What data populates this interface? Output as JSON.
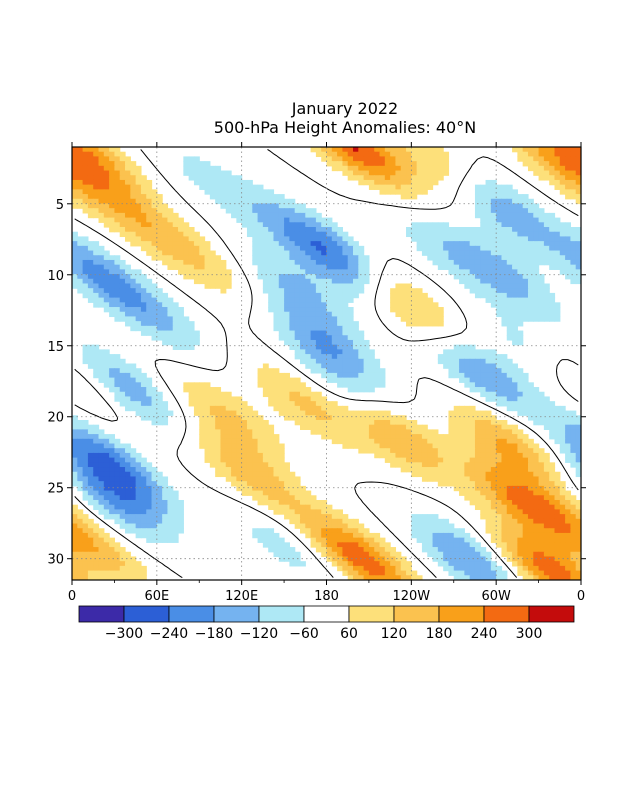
{
  "chart_data": {
    "type": "heatmap",
    "title": "January 2022",
    "subtitle": "500-hPa Height Anomalies: 40°N",
    "xlabel": "",
    "ylabel": "",
    "x_ticks": [
      "0",
      "60E",
      "120E",
      "180",
      "120W",
      "60W",
      "0"
    ],
    "y_ticks": [
      "5",
      "10",
      "15",
      "20",
      "25",
      "30"
    ],
    "x_range_deg_east": [
      0,
      360
    ],
    "y_range_day": [
      1,
      31
    ],
    "colorbar": {
      "labels": [
        "-300",
        "-240",
        "-180",
        "-120",
        "-60",
        "60",
        "120",
        "180",
        "240",
        "300"
      ],
      "colors": [
        "#3c2aa8",
        "#2c5fd6",
        "#4a8ee6",
        "#75b3f0",
        "#aee8f5",
        "#ffffff",
        "#fde07a",
        "#fbc24f",
        "#f9a01a",
        "#f36a12",
        "#c40c0c"
      ]
    },
    "contour_level": "0",
    "grid": true,
    "anomaly_features": [
      {
        "sign": "neg",
        "lon": 20,
        "day": 10,
        "amp": -170
      },
      {
        "sign": "neg",
        "lon": 60,
        "day": 13,
        "amp": -100
      },
      {
        "sign": "neg",
        "lon": 40,
        "day": 18,
        "amp": -160
      },
      {
        "sign": "neg",
        "lon": 28,
        "day": 23.5,
        "amp": -250
      },
      {
        "sign": "neg",
        "lon": 30,
        "day": 26,
        "amp": -150
      },
      {
        "sign": "neg",
        "lon": 160,
        "day": 11,
        "amp": -120
      },
      {
        "sign": "neg",
        "lon": 180,
        "day": 15,
        "amp": -170
      },
      {
        "sign": "neg",
        "lon": 200,
        "day": 19,
        "amp": -140
      },
      {
        "sign": "neg",
        "lon": 160,
        "day": 7,
        "amp": -100
      },
      {
        "sign": "neg",
        "lon": 190,
        "day": 9,
        "amp": -200
      },
      {
        "sign": "neg",
        "lon": 260,
        "day": 8,
        "amp": -80
      },
      {
        "sign": "neg",
        "lon": 300,
        "day": 5,
        "amp": -200
      },
      {
        "sign": "neg",
        "lon": 305,
        "day": 10,
        "amp": -140
      },
      {
        "sign": "neg",
        "lon": 290,
        "day": 17,
        "amp": -180
      },
      {
        "sign": "neg",
        "lon": 330,
        "day": 15.5,
        "amp": -120
      },
      {
        "sign": "neg",
        "lon": 280,
        "day": 30,
        "amp": -180
      },
      {
        "sign": "neg",
        "lon": 100,
        "day": 3.5,
        "amp": -80
      },
      {
        "sign": "neg",
        "lon": 150,
        "day": 29,
        "amp": -90
      },
      {
        "sign": "pos",
        "lon": 10,
        "day": 1.5,
        "amp": 200
      },
      {
        "sign": "pos",
        "lon": 45,
        "day": 6,
        "amp": 120
      },
      {
        "sign": "pos",
        "lon": 90,
        "day": 9,
        "amp": 100
      },
      {
        "sign": "pos",
        "lon": 110,
        "day": 20,
        "amp": 130
      },
      {
        "sign": "pos",
        "lon": 125,
        "day": 24,
        "amp": 150
      },
      {
        "sign": "pos",
        "lon": 165,
        "day": 19,
        "amp": 140
      },
      {
        "sign": "pos",
        "lon": 200,
        "day": 1,
        "amp": 300
      },
      {
        "sign": "pos",
        "lon": 235,
        "day": 12,
        "amp": 180
      },
      {
        "sign": "pos",
        "lon": 225,
        "day": 21,
        "amp": 240
      },
      {
        "sign": "pos",
        "lon": 205,
        "day": 30,
        "amp": 280
      },
      {
        "sign": "pos",
        "lon": 320,
        "day": 26,
        "amp": 240
      },
      {
        "sign": "pos",
        "lon": 340,
        "day": 31,
        "amp": 270
      },
      {
        "sign": "pos",
        "lon": 345,
        "day": 2,
        "amp": 180
      },
      {
        "sign": "pos",
        "lon": 310,
        "day": 22,
        "amp": 180
      },
      {
        "sign": "pos",
        "lon": 265,
        "day": 2.5,
        "amp": 150
      },
      {
        "sign": "pos",
        "lon": 15,
        "day": 29,
        "amp": 150
      },
      {
        "sign": "pos",
        "lon": 355,
        "day": 17,
        "amp": 130
      }
    ]
  }
}
